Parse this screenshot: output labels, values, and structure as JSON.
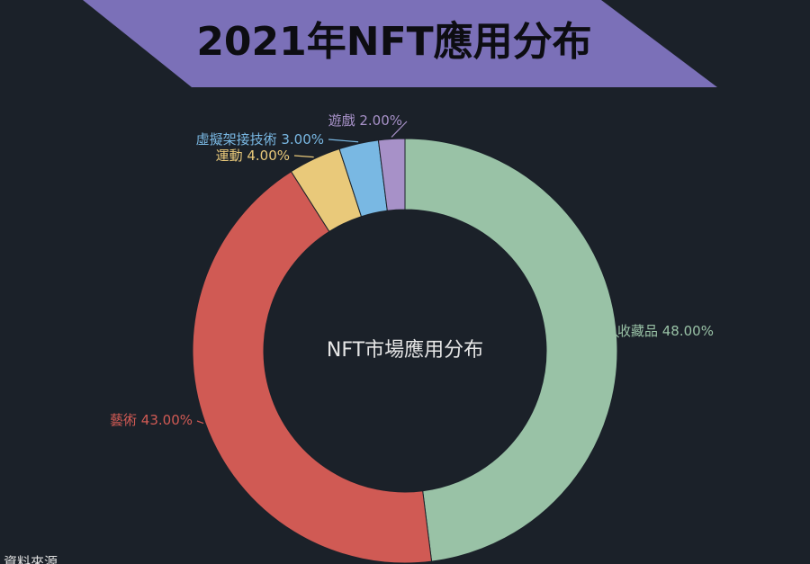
{
  "banner": {
    "title": "2021年NFT應用分布",
    "color": "#7b70b8"
  },
  "chart_data": {
    "type": "pie",
    "donut": true,
    "center_label": "NFT市場應用分布",
    "slices": [
      {
        "label": "收藏品",
        "value": 48.0,
        "display": "收藏品 48.00%",
        "color": "#99c2a6"
      },
      {
        "label": "藝術",
        "value": 43.0,
        "display": "藝術 43.00%",
        "color": "#d05a54"
      },
      {
        "label": "運動",
        "value": 4.0,
        "display": "運動 4.00%",
        "color": "#e9c97a"
      },
      {
        "label": "虛擬架接技術",
        "value": 3.0,
        "display": "虛擬架接技術 3.00%",
        "color": "#79b8e3"
      },
      {
        "label": "遊戲",
        "value": 2.0,
        "display": "遊戲 2.00%",
        "color": "#a791c8"
      }
    ],
    "legend": "none"
  },
  "footer": {
    "source_text": "資料來源"
  }
}
